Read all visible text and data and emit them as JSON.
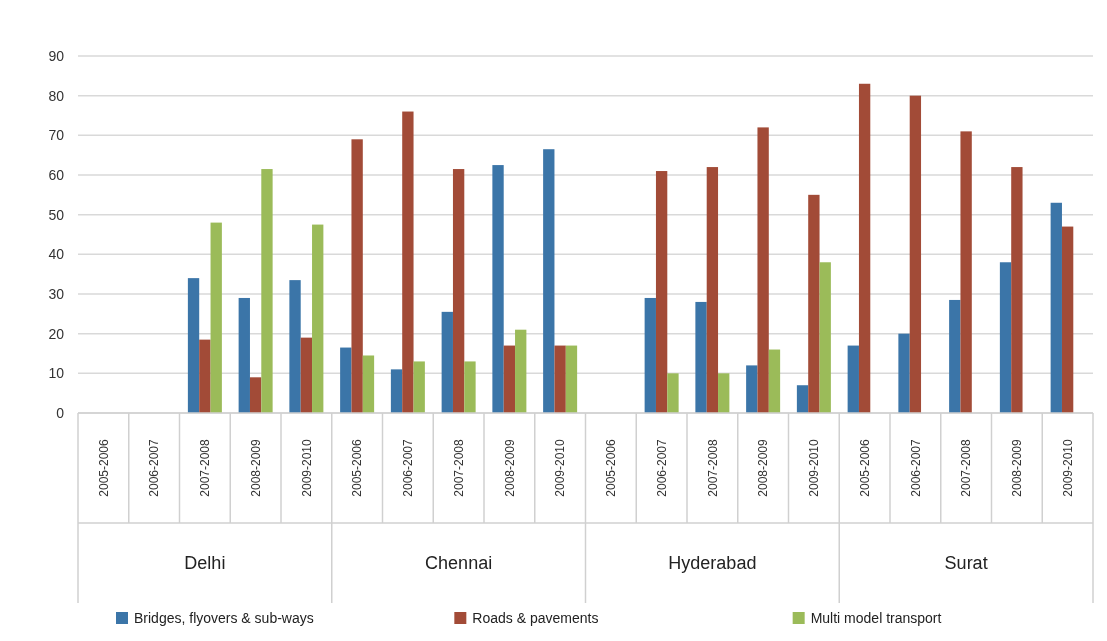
{
  "chart_data": {
    "type": "bar",
    "categories": [
      "2005-2006",
      "2006-2007",
      "2007-2008",
      "2008-2009",
      "2009-2010",
      "2005-2006",
      "2006-2007",
      "2007-2008",
      "2008-2009",
      "2009-2010",
      "2005-2006",
      "2006-2007",
      "2007-2008",
      "2008-2009",
      "2009-2010",
      "2005-2006",
      "2006-2007",
      "2007-2008",
      "2008-2009",
      "2009-2010"
    ],
    "annotations": [
      "Delhi",
      "Chennai",
      "Hyderabad",
      "Surat"
    ],
    "series": [
      {
        "name": "Bridges, flyovers & sub-ways",
        "color": "#3b75a8",
        "values": [
          null,
          null,
          34,
          29,
          33.5,
          16.5,
          11,
          25.5,
          62.5,
          66.5,
          null,
          29,
          28,
          12,
          7,
          17,
          20,
          28.5,
          38,
          53
        ]
      },
      {
        "name": "Roads & pavements",
        "color": "#a24b37",
        "values": [
          null,
          null,
          18.5,
          9,
          19,
          69,
          76,
          61.5,
          17,
          17,
          null,
          61,
          62,
          72,
          55,
          83,
          80,
          71,
          62,
          47
        ]
      },
      {
        "name": "Multi model transport",
        "color": "#9bbb59",
        "values": [
          null,
          null,
          48,
          61.5,
          47.5,
          14.5,
          13,
          13,
          21,
          17,
          null,
          10,
          10,
          16,
          38,
          null,
          null,
          null,
          null,
          null
        ]
      }
    ],
    "ylim": [
      0,
      90
    ],
    "yticks": [
      0,
      10,
      20,
      30,
      40,
      50,
      60,
      70,
      80,
      90
    ],
    "grid": "y",
    "legend": "bottom"
  }
}
